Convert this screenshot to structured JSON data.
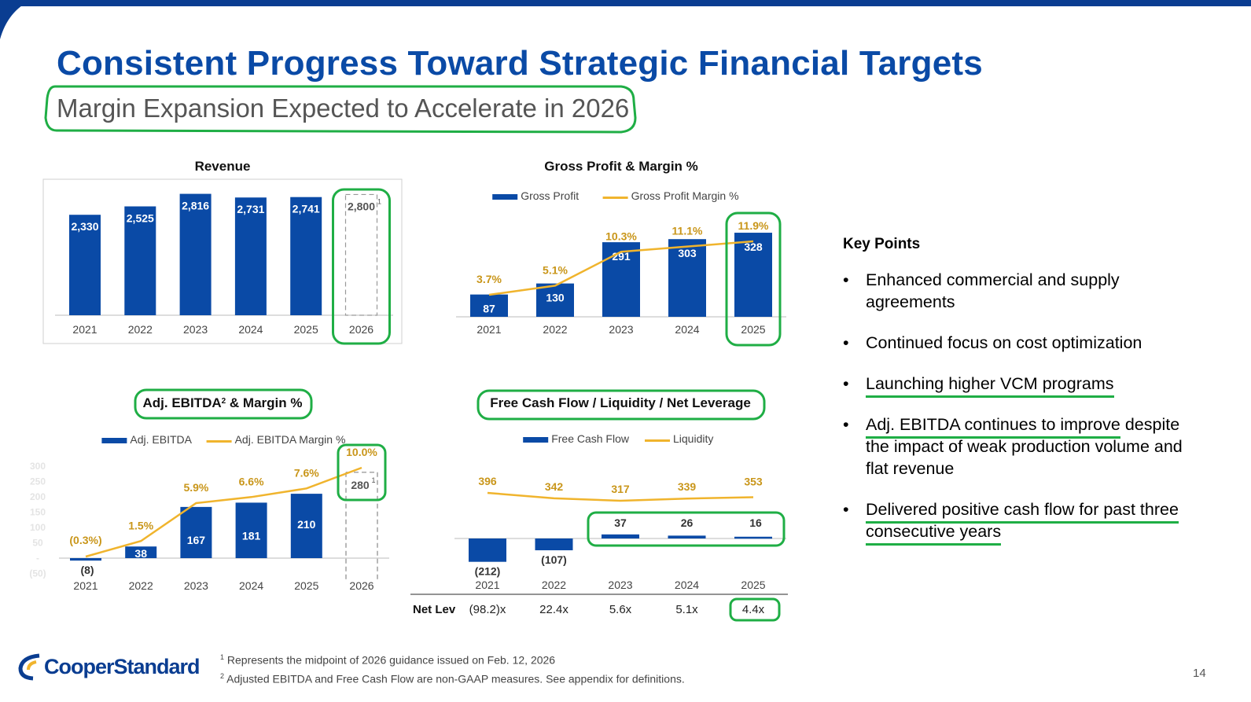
{
  "title": "Consistent Progress Toward Strategic Financial Targets",
  "subtitle": "Margin Expansion Expected to Accelerate in 2026",
  "colors": {
    "bar": "#0a4aa6",
    "line": "#f0b42d",
    "highlight": "#1fae45",
    "title": "#0a4aa6"
  },
  "chart_data": [
    {
      "id": "revenue",
      "type": "bar",
      "title": "Revenue",
      "categories": [
        "2021",
        "2022",
        "2023",
        "2024",
        "2025",
        "2026"
      ],
      "values": [
        2330,
        2525,
        2816,
        2731,
        2741,
        2800
      ],
      "labels": [
        "2,330",
        "2,525",
        "2,816",
        "2,731",
        "2,741",
        "2,800"
      ],
      "guidance_index": 5,
      "guidance_footnote": "1",
      "ylim": [
        0,
        3000
      ]
    },
    {
      "id": "gross-profit",
      "type": "bar+line",
      "title": "Gross Profit & Margin %",
      "legend": [
        "Gross Profit",
        "Gross Profit Margin %"
      ],
      "categories": [
        "2021",
        "2022",
        "2023",
        "2024",
        "2025"
      ],
      "bar_values": [
        87,
        130,
        291,
        303,
        328
      ],
      "bar_labels": [
        "87",
        "130",
        "291",
        "303",
        "328"
      ],
      "line_values": [
        3.7,
        5.1,
        10.3,
        11.1,
        11.9
      ],
      "line_labels": [
        "3.7%",
        "5.1%",
        "10.3%",
        "11.1%",
        "11.9%"
      ],
      "ylim": [
        0,
        450
      ]
    },
    {
      "id": "adj-ebitda",
      "type": "bar+line",
      "title": "Adj. EBITDA",
      "title_sup": "2",
      "title_rest": " & Margin %",
      "legend": [
        "Adj. EBITDA",
        "Adj. EBITDA Margin %"
      ],
      "categories": [
        "2021",
        "2022",
        "2023",
        "2024",
        "2025",
        "2026"
      ],
      "bar_values": [
        -8,
        38,
        167,
        181,
        210,
        280
      ],
      "bar_labels": [
        "(8)",
        "38",
        "167",
        "181",
        "210",
        "280"
      ],
      "line_values": [
        -0.3,
        1.5,
        5.9,
        6.6,
        7.6,
        10.0
      ],
      "line_labels": [
        "(0.3%)",
        "1.5%",
        "5.9%",
        "6.6%",
        "7.6%",
        "10.0%"
      ],
      "guidance_index": 5,
      "guidance_footnote": "1",
      "ytick_labels": [
        "300",
        "250",
        "200",
        "150",
        "100",
        "50",
        "-",
        "(50)"
      ],
      "ylim": [
        -50,
        300
      ]
    },
    {
      "id": "fcf",
      "type": "bar+line",
      "title": "Free Cash Flow / Liquidity / Net Leverage",
      "legend": [
        "Free Cash Flow",
        "Liquidity"
      ],
      "categories": [
        "2021",
        "2022",
        "2023",
        "2024",
        "2025"
      ],
      "bar_values": [
        -212,
        -107,
        37,
        26,
        16
      ],
      "bar_labels": [
        "(212)",
        "(107)",
        "37",
        "26",
        "16"
      ],
      "line_values": [
        396,
        342,
        317,
        339,
        353
      ],
      "line_labels": [
        "396",
        "342",
        "317",
        "339",
        "353"
      ],
      "net_lev_label": "Net Lev",
      "net_lev": [
        "(98.2)x",
        "22.4x",
        "5.6x",
        "5.1x",
        "4.4x"
      ]
    }
  ],
  "key_points": {
    "title": "Key Points",
    "items": [
      {
        "text": "Enhanced commercial and supply agreements",
        "underlined": "",
        "rest": "Enhanced commercial and supply agreements"
      },
      {
        "text": "Continued focus on cost optimization",
        "underlined": "",
        "rest": "Continued focus on cost optimization"
      },
      {
        "text": "Launching higher VCM programs",
        "underlined": "Launching higher VCM programs",
        "rest": ""
      },
      {
        "text": "Adj. EBITDA continues to improve despite the impact of weak production volume and flat revenue",
        "underlined": "Adj. EBITDA continues to improve",
        "rest": " despite the impact of weak production volume and flat revenue"
      },
      {
        "text": "Delivered positive cash flow for past three consecutive years",
        "underlined": "Delivered positive cash flow for past three consecutive years",
        "rest": ""
      }
    ]
  },
  "footnotes": {
    "n1_mark": "1",
    "n1": "Represents the midpoint of 2026 guidance issued on Feb. 12, 2026",
    "n2_mark": "2",
    "n2": "Adjusted EBITDA and Free Cash Flow are non-GAAP measures. See appendix for definitions."
  },
  "logo": {
    "text": "CooperStandard"
  },
  "page_number": "14"
}
